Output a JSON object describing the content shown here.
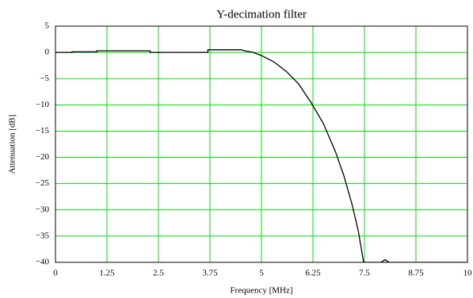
{
  "chart_data": {
    "type": "line",
    "title": "Y-decimation filter",
    "x_label": "Frequency [MHz]",
    "y_label": "Attenuation [dB]",
    "xlim": [
      0,
      10
    ],
    "ylim": [
      -40,
      5
    ],
    "xticks": [
      0,
      1.25,
      2.5,
      3.75,
      5,
      6.25,
      7.5,
      8.75,
      10
    ],
    "yticks": [
      5,
      0,
      {
        "value": -5,
        "label": "−5"
      },
      {
        "value": -10,
        "label": "−10"
      },
      {
        "value": -15,
        "label": "−15"
      },
      {
        "value": -20,
        "label": "−20"
      },
      {
        "value": -25,
        "label": "−25"
      },
      {
        "value": -30,
        "label": "−30"
      },
      {
        "value": -35,
        "label": "−35"
      },
      {
        "value": -40,
        "label": "−40"
      }
    ],
    "grid": true,
    "grid_color": "#00dd00",
    "series": [
      {
        "name": "Attenuation",
        "color": "#000000",
        "x": [
          0,
          0.4,
          0.4,
          1.0,
          1.0,
          2.3,
          2.3,
          3.7,
          3.7,
          4.5,
          4.6,
          4.8,
          5.0,
          5.3,
          5.6,
          5.9,
          6.2,
          6.5,
          6.8,
          7.0,
          7.2,
          7.35,
          7.48,
          7.9,
          8.0,
          8.1,
          10
        ],
        "values": [
          0,
          0,
          0.1,
          0.1,
          0.3,
          0.3,
          0,
          0,
          0.5,
          0.5,
          0.3,
          0,
          -0.6,
          -1.8,
          -3.6,
          -6,
          -9.5,
          -13.5,
          -19,
          -23.5,
          -29,
          -34,
          -40,
          -40,
          -39.5,
          -40,
          -40
        ]
      }
    ]
  }
}
